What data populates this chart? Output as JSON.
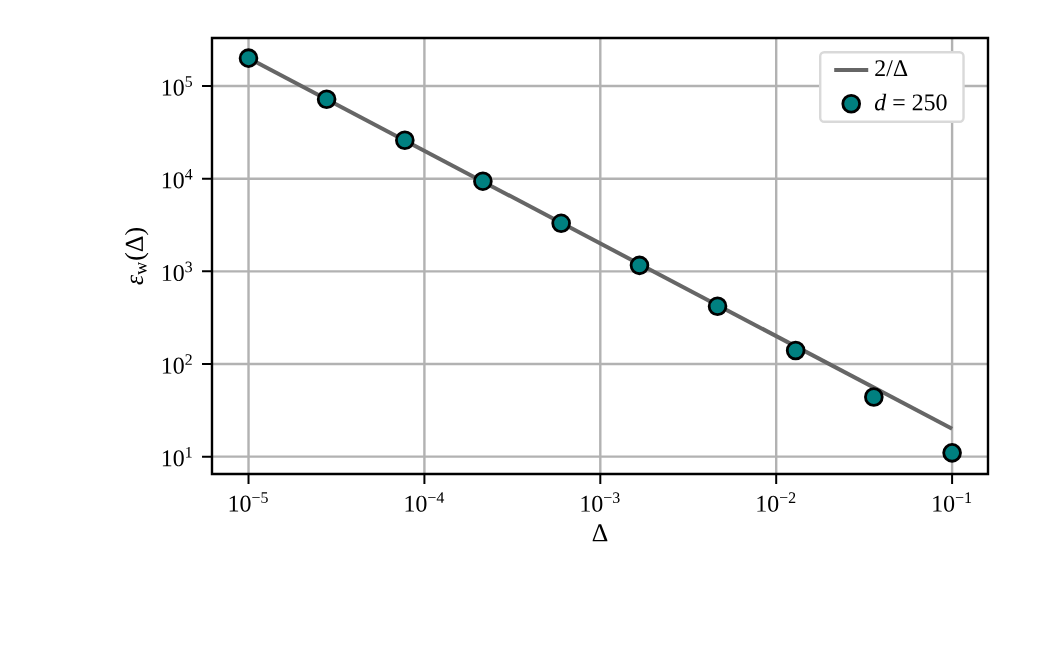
{
  "chart_data": {
    "type": "line",
    "xlabel": "Δ",
    "ylabel": "*ε*$_{w}$(Δ)",
    "series": [
      {
        "name": "2/Δ",
        "marker": "none",
        "color": "#666666",
        "x": [
          1e-05,
          0.1
        ],
        "values": [
          200000,
          20
        ]
      },
      {
        "name": "*d* = 250",
        "type": "scatter",
        "marker": "circle",
        "color": "#008080",
        "x": [
          1e-05,
          2.78e-05,
          7.74e-05,
          0.000215,
          0.000599,
          0.00167,
          0.00464,
          0.0129,
          0.0359,
          0.1
        ],
        "values": [
          200000,
          72000,
          26000,
          9400,
          3300,
          1160,
          420,
          140,
          44,
          11
        ]
      }
    ],
    "xlim": [
      6.2e-06,
      0.16
    ],
    "ylim": [
      6.5,
      330000
    ],
    "xticks": [
      {
        "value": 1e-05,
        "label": "10$^{−5}$"
      },
      {
        "value": 0.0001,
        "label": "10$^{−4}$"
      },
      {
        "value": 0.001,
        "label": "10$^{−3}$"
      },
      {
        "value": 0.01,
        "label": "10$^{−2}$"
      },
      {
        "value": 0.1,
        "label": "10$^{−1}$"
      }
    ],
    "yticks": [
      {
        "value": 10,
        "label": "10$^{1}$"
      },
      {
        "value": 100,
        "label": "10$^{2}$"
      },
      {
        "value": 1000,
        "label": "10$^{3}$"
      },
      {
        "value": 10000,
        "label": "10$^{4}$"
      },
      {
        "value": 100000,
        "label": "10$^{5}$"
      }
    ],
    "log": "xy",
    "grid": true,
    "legend": "top right"
  }
}
